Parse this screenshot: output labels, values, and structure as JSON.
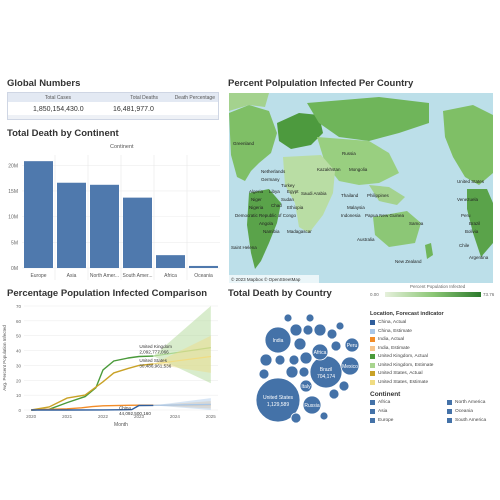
{
  "global": {
    "title": "Global Numbers",
    "headers": [
      "Total Cases",
      "Total Deaths",
      "Death Percentage"
    ],
    "values": [
      "1,850,154,430.0",
      "16,481,977.0",
      ""
    ]
  },
  "map": {
    "title": "Percent Polpulation Infected Per Country",
    "attribution": "© 2023 Mapbox © OpenStreetMap",
    "labels": [
      "Russia",
      "Greenland",
      "Netherlands",
      "Kazakhstan",
      "Mongolia",
      "Germany",
      "Turkey",
      "United States",
      "Algeria",
      "Libya",
      "Egypt",
      "Saudi Arabia",
      "Niger",
      "Sudan",
      "Thailand",
      "Philippines",
      "Venezuela",
      "Chad",
      "Nigeria",
      "Ethiopia",
      "Malaysia",
      "Democratic Republic of Congo",
      "Peru",
      "Indonesia",
      "Papua New Guinea",
      "Brazil",
      "Angola",
      "Samoa",
      "Bolivia",
      "Namibia",
      "Madagascar",
      "Saint Helena",
      "Australia",
      "Chile",
      "New Zealand",
      "Argentina",
      "Mexico",
      "Solomon Islands",
      "Northern Mariana Islands",
      "Marshall Islands",
      "Wallis and Futuna",
      "United States Minor Outlying Islands",
      "Kiribati",
      "Canada",
      "Mexico",
      "Guatemala",
      "Iceland",
      "Kenya",
      "Yemen",
      "Mali",
      "Samoa"
    ]
  },
  "bar": {
    "title": "Total Death by Continent",
    "header": "Continent"
  },
  "line": {
    "title": "Percentage Population Infected Comparison",
    "ylabel": "Avg. Percent Population Infected",
    "xlabel": "Month"
  },
  "bubble": {
    "title": "Total Death by Country"
  },
  "legend": {
    "colorbar_title": "Percent Population Infected",
    "colorbar_min": "0.00",
    "colorbar_max": "73.76",
    "forecast_title": "Location, Forecast indicator",
    "forecast_items": [
      {
        "label": "China, Actual",
        "color": "#2f5d9b"
      },
      {
        "label": "China, Estimate",
        "color": "#a9c7e8"
      },
      {
        "label": "India, Actual",
        "color": "#f28c28"
      },
      {
        "label": "India, Estimate",
        "color": "#f7c58c"
      },
      {
        "label": "United Kingdom, Actual",
        "color": "#4a9a3a"
      },
      {
        "label": "United Kingdom, Estimate",
        "color": "#a8d58f"
      },
      {
        "label": "United States, Actual",
        "color": "#c9a227"
      },
      {
        "label": "United States, Estimate",
        "color": "#f0dc82"
      }
    ],
    "continent_title": "Continent",
    "continent_items": [
      {
        "label": "Africa",
        "color": "#4472a8"
      },
      {
        "label": "North America",
        "color": "#4472a8"
      },
      {
        "label": "Asia",
        "color": "#4472a8"
      },
      {
        "label": "Oceania",
        "color": "#4472a8"
      },
      {
        "label": "Europe",
        "color": "#4472a8"
      },
      {
        "label": "South America",
        "color": "#4472a8"
      }
    ]
  },
  "chart_data": [
    {
      "type": "bar",
      "title": "Total Death by Continent",
      "categories": [
        "Europe",
        "Asia",
        "North Amer...",
        "South Amer...",
        "Africa",
        "Oceania"
      ],
      "values": [
        20.8,
        16.6,
        16.2,
        13.7,
        2.5,
        0.4
      ],
      "ytick_labels": [
        "0M",
        "5M",
        "10M",
        "15M",
        "20M"
      ],
      "yticks": [
        0,
        5,
        10,
        15,
        20
      ],
      "ylim": [
        0,
        22
      ],
      "color": "#4f79ad"
    },
    {
      "type": "line",
      "title": "Percentage Population Infected Comparison",
      "xlabel": "Month",
      "ylabel": "Avg. Percent Population Infected",
      "xtick_labels": [
        "2020",
        "2021",
        "2022",
        "2023",
        "2024",
        "2025"
      ],
      "xticks": [
        2020,
        2021,
        2022,
        2023,
        2024,
        2025
      ],
      "ytick_labels": [
        "0",
        "10",
        "20",
        "30",
        "40",
        "50",
        "60",
        "70"
      ],
      "yticks": [
        0,
        10,
        20,
        30,
        40,
        50,
        60,
        70
      ],
      "ylim": [
        0,
        70
      ],
      "xlim": [
        2019.8,
        2025.2
      ],
      "series": [
        {
          "name": "United Kingdom, Actual",
          "color": "#4a9a3a",
          "x": [
            2020.0,
            2020.5,
            2021.0,
            2021.5,
            2021.8,
            2022.0,
            2022.3,
            2022.7,
            2023.0,
            2023.4
          ],
          "y": [
            0,
            0.5,
            5,
            9,
            15,
            27,
            33,
            35,
            36,
            36.3
          ]
        },
        {
          "name": "United States, Actual",
          "color": "#c9a227",
          "x": [
            2020.0,
            2020.5,
            2021.0,
            2021.5,
            2022.0,
            2022.3,
            2022.7,
            2023.0,
            2023.4
          ],
          "y": [
            0,
            2,
            8,
            10,
            19,
            25,
            28,
            30,
            31
          ]
        },
        {
          "name": "India, Actual",
          "color": "#f28c28",
          "x": [
            2020.0,
            2020.5,
            2021.0,
            2021.4,
            2021.7,
            2022.0,
            2022.5,
            2023.0,
            2023.4
          ],
          "y": [
            0,
            0.5,
            0.8,
            1.5,
            2.3,
            2.8,
            3.1,
            3.2,
            3.2
          ]
        },
        {
          "name": "China, Actual",
          "color": "#2f5d9b",
          "x": [
            2020.0,
            2021.0,
            2022.0,
            2022.8,
            2023.0,
            2023.4
          ],
          "y": [
            0.01,
            0.01,
            0.05,
            0.3,
            3.0,
            3.1
          ]
        }
      ],
      "forecast_bands": [
        {
          "name": "United Kingdom, Estimate",
          "color": "#a8d58f",
          "x": [
            2023.4,
            2025
          ],
          "center": [
            36.3,
            42
          ],
          "upper": [
            36.3,
            70
          ],
          "lower": [
            36.3,
            18
          ]
        },
        {
          "name": "United States, Estimate",
          "color": "#f0dc82",
          "x": [
            2023.4,
            2025
          ],
          "center": [
            31,
            36
          ],
          "upper": [
            31,
            50
          ],
          "lower": [
            31,
            25
          ]
        },
        {
          "name": "India, Estimate",
          "color": "#f7c58c",
          "x": [
            2023.4,
            2025
          ],
          "center": [
            3.2,
            3.4
          ],
          "upper": [
            3.2,
            6
          ],
          "lower": [
            3.2,
            1
          ]
        },
        {
          "name": "China, Estimate",
          "color": "#a9c7e8",
          "x": [
            2023.4,
            2025
          ],
          "center": [
            3.1,
            3.8
          ],
          "upper": [
            3.1,
            8
          ],
          "lower": [
            3.1,
            0
          ]
        }
      ],
      "annotations": [
        {
          "label": "United Kingdom\n2,092,777,066",
          "x": 2023.4,
          "y": 36.3
        },
        {
          "label": "United States\n30,486,961,536",
          "x": 2023.4,
          "y": 31
        },
        {
          "label": "China\n44,092,500,160",
          "x": 2023.0,
          "y": 3.1
        }
      ]
    },
    {
      "type": "bubble",
      "title": "Total Death by Country",
      "items": [
        {
          "label": "United States",
          "value": "1,129,589",
          "color": "#4472a8"
        },
        {
          "label": "Brazil",
          "value": "704,174",
          "color": "#4472a8"
        },
        {
          "label": "India",
          "value": "",
          "color": "#4472a8"
        },
        {
          "label": "Russia",
          "value": "",
          "color": "#4472a8"
        },
        {
          "label": "Mexico",
          "value": "",
          "color": "#4472a8"
        },
        {
          "label": "Peru",
          "value": "",
          "color": "#4472a8"
        },
        {
          "label": "Africa",
          "value": "",
          "color": "#4472a8"
        },
        {
          "label": "Italy",
          "value": "",
          "color": "#4472a8"
        }
      ]
    }
  ]
}
